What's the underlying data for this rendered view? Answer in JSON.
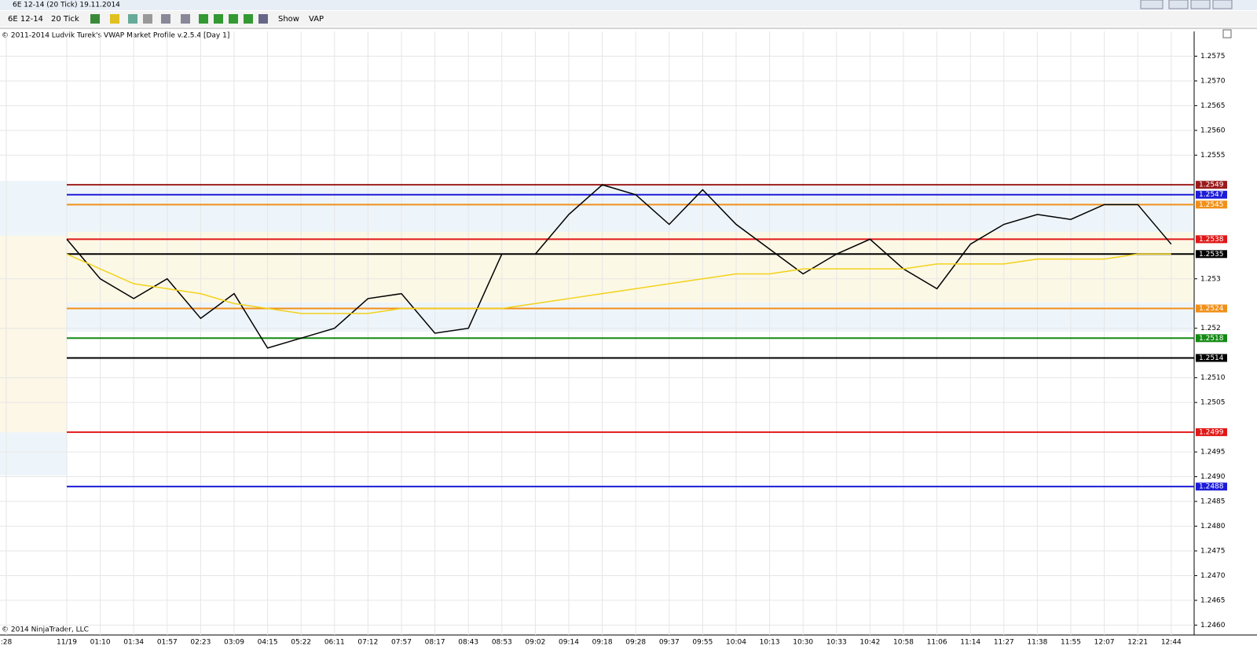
{
  "window": {
    "title": "6E 12-14 (20 Tick)  19.11.2014"
  },
  "toolbar": {
    "instrument": "6E 12-14",
    "interval": "20 Tick",
    "show": "Show",
    "vap": "VAP"
  },
  "header": "© 2011-2014 Ludvik Turek's VWAP Market Profile v.2.5.4 [Day 1]",
  "footer": "© 2014 NinjaTrader, LLC",
  "chart_data": {
    "type": "line",
    "categories": [
      ":28",
      "11/19",
      "01:10",
      "01:34",
      "01:57",
      "02:23",
      "03:09",
      "04:15",
      "05:22",
      "06:11",
      "07:12",
      "07:57",
      "08:17",
      "08:43",
      "08:53",
      "09:02",
      "09:14",
      "09:18",
      "09:28",
      "09:37",
      "09:55",
      "10:04",
      "10:13",
      "10:30",
      "10:33",
      "10:42",
      "10:58",
      "11:06",
      "11:14",
      "11:27",
      "11:38",
      "11:55",
      "12:07",
      "12:21",
      "12:44"
    ],
    "series": [
      {
        "color": "#000000",
        "values": [
          null,
          1.2538,
          1.253,
          1.2526,
          1.253,
          1.2522,
          1.2527,
          1.2516,
          1.2518,
          1.252,
          1.2526,
          1.2527,
          1.2519,
          1.252,
          1.2535,
          1.2535,
          1.2543,
          1.2549,
          1.2547,
          1.2541,
          1.2548,
          1.2541,
          1.2536,
          1.2531,
          1.2535,
          1.2538,
          1.2532,
          1.2528,
          1.2537,
          1.2541,
          1.2543,
          1.2542,
          1.2545,
          1.2545,
          1.2537
        ]
      },
      {
        "color": "#f2d21a",
        "values": [
          null,
          1.2535,
          1.2532,
          1.2529,
          1.2528,
          1.2527,
          1.2525,
          1.2524,
          1.2523,
          1.2523,
          1.2523,
          1.2524,
          1.2524,
          1.2524,
          1.2524,
          1.2525,
          1.2526,
          1.2527,
          1.2528,
          1.2529,
          1.253,
          1.2531,
          1.2531,
          1.2532,
          1.2532,
          1.2532,
          1.2532,
          1.2533,
          1.2533,
          1.2533,
          1.2534,
          1.2534,
          1.2534,
          1.2535,
          1.2535
        ]
      }
    ],
    "levels": [
      {
        "value": 1.2549,
        "color": "#9b1b1b"
      },
      {
        "value": 1.2547,
        "color": "#1c1cd8"
      },
      {
        "value": 1.2545,
        "color": "#f0901a"
      },
      {
        "value": 1.2538,
        "color": "#e01818"
      },
      {
        "value": 1.2535,
        "color": "#000000"
      },
      {
        "value": 1.2524,
        "color": "#f0901a"
      },
      {
        "value": 1.2518,
        "color": "#138a13"
      },
      {
        "value": 1.2514,
        "color": "#000000"
      },
      {
        "value": 1.2499,
        "color": "#e01818"
      },
      {
        "value": 1.2488,
        "color": "#1c1cd8"
      }
    ],
    "ylim": [
      1.2458,
      1.258
    ],
    "yticks": [
      1.2575,
      {
        "value": 1.257,
        "label": "1.2570"
      },
      1.2565,
      {
        "value": 1.256,
        "label": "1.2560"
      },
      1.2555,
      1.253,
      1.252,
      {
        "value": 1.251,
        "label": "1.2510"
      },
      1.2505,
      1.2495,
      {
        "value": 1.249,
        "label": "1.2490"
      },
      1.2485,
      {
        "value": 1.248,
        "label": "1.2480"
      },
      1.2475,
      {
        "value": 1.247,
        "label": "1.2470"
      },
      1.2465,
      {
        "value": 1.246,
        "label": "1.2460"
      }
    ],
    "grid": true
  }
}
